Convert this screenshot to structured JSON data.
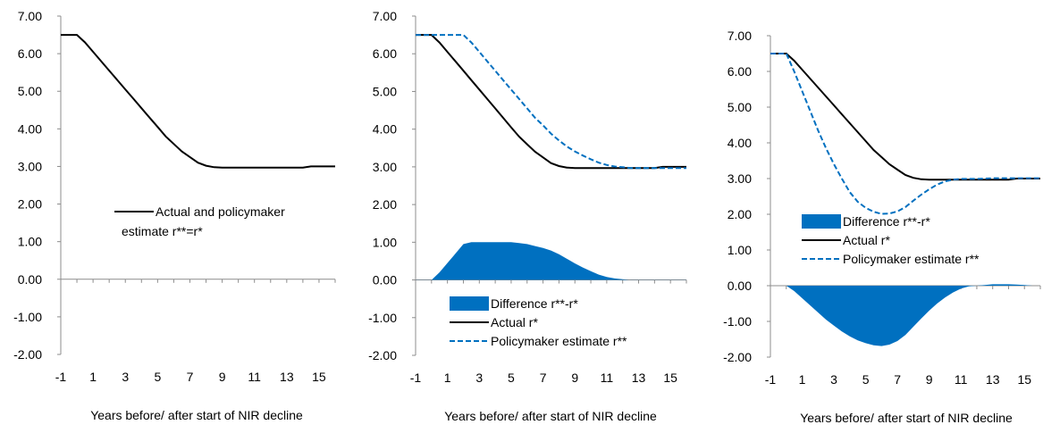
{
  "chart_data": [
    {
      "type": "line",
      "x": [
        -1,
        -0.5,
        0,
        0.5,
        1,
        1.5,
        2,
        2.5,
        3,
        3.5,
        4,
        4.5,
        5,
        5.5,
        6,
        6.5,
        7,
        7.5,
        8,
        8.5,
        9,
        9.5,
        10,
        10.5,
        11,
        11.5,
        12,
        12.5,
        13,
        13.5,
        14,
        14.5,
        15,
        15.5,
        16
      ],
      "xticks": [
        "-1",
        "1",
        "3",
        "5",
        "7",
        "9",
        "11",
        "13",
        "15"
      ],
      "yticks": [
        "7.00",
        "6.00",
        "5.00",
        "4.00",
        "3.00",
        "2.00",
        "1.00",
        "0.00",
        "-1.00",
        "-2.00"
      ],
      "ylim": [
        -2,
        7
      ],
      "xlabel": "Years before/ after start of NIR decline",
      "legend": [
        {
          "label": "Actual and policymaker",
          "label2": "estimate r**=r*",
          "style": "solid"
        }
      ],
      "series": [
        {
          "name": "Actual and policymaker estimate r**=r*",
          "style": "solid",
          "color": "#000000",
          "values": [
            6.5,
            6.5,
            6.5,
            6.3,
            6.05,
            5.8,
            5.55,
            5.3,
            5.05,
            4.8,
            4.55,
            4.3,
            4.05,
            3.8,
            3.6,
            3.4,
            3.25,
            3.1,
            3.02,
            2.98,
            2.97,
            2.97,
            2.97,
            2.97,
            2.97,
            2.97,
            2.97,
            2.97,
            2.97,
            2.97,
            2.97,
            3.0,
            3.0,
            3.0,
            3.0
          ]
        }
      ]
    },
    {
      "type": "line",
      "x": [
        -1,
        -0.5,
        0,
        0.5,
        1,
        1.5,
        2,
        2.5,
        3,
        3.5,
        4,
        4.5,
        5,
        5.5,
        6,
        6.5,
        7,
        7.5,
        8,
        8.5,
        9,
        9.5,
        10,
        10.5,
        11,
        11.5,
        12,
        12.5,
        13,
        13.5,
        14,
        14.5,
        15,
        15.5,
        16
      ],
      "xticks": [
        "-1",
        "1",
        "3",
        "5",
        "7",
        "9",
        "11",
        "13",
        "15"
      ],
      "yticks": [
        "7.00",
        "6.00",
        "5.00",
        "4.00",
        "3.00",
        "2.00",
        "1.00",
        "0.00",
        "-1.00",
        "-2.00"
      ],
      "ylim": [
        -2,
        7
      ],
      "xlabel": "Years before/ after start of NIR decline",
      "legend": [
        {
          "label": "Difference r**-r*",
          "style": "area"
        },
        {
          "label": "Actual r*",
          "style": "solid"
        },
        {
          "label": "Policymaker estimate r**",
          "style": "dashed"
        }
      ],
      "series": [
        {
          "name": "Difference r**-r*",
          "style": "area",
          "color": "#0070c0",
          "values": [
            0,
            0,
            0,
            0.2,
            0.45,
            0.7,
            0.95,
            1.0,
            1.0,
            1.0,
            1.0,
            1.0,
            1.0,
            0.98,
            0.95,
            0.9,
            0.85,
            0.78,
            0.68,
            0.56,
            0.44,
            0.33,
            0.23,
            0.14,
            0.08,
            0.04,
            0.02,
            0.0,
            0.0,
            0.0,
            0.0,
            0.0,
            0.0,
            0.0,
            0.0
          ]
        },
        {
          "name": "Actual r*",
          "style": "solid",
          "color": "#000000",
          "values": [
            6.5,
            6.5,
            6.5,
            6.3,
            6.05,
            5.8,
            5.55,
            5.3,
            5.05,
            4.8,
            4.55,
            4.3,
            4.05,
            3.8,
            3.6,
            3.4,
            3.25,
            3.1,
            3.02,
            2.98,
            2.97,
            2.97,
            2.97,
            2.97,
            2.97,
            2.97,
            2.97,
            2.97,
            2.97,
            2.97,
            2.97,
            3.0,
            3.0,
            3.0,
            3.0
          ]
        },
        {
          "name": "Policymaker estimate r**",
          "style": "dashed",
          "color": "#0070c0",
          "values": [
            6.5,
            6.5,
            6.5,
            6.5,
            6.5,
            6.5,
            6.5,
            6.3,
            6.05,
            5.8,
            5.55,
            5.3,
            5.05,
            4.8,
            4.55,
            4.3,
            4.1,
            3.88,
            3.7,
            3.54,
            3.41,
            3.3,
            3.2,
            3.11,
            3.05,
            3.01,
            2.99,
            2.97,
            2.97,
            2.97,
            2.97,
            2.97,
            2.97,
            2.97,
            2.97
          ]
        }
      ]
    },
    {
      "type": "line",
      "x": [
        -1,
        -0.5,
        0,
        0.5,
        1,
        1.5,
        2,
        2.5,
        3,
        3.5,
        4,
        4.5,
        5,
        5.5,
        6,
        6.5,
        7,
        7.5,
        8,
        8.5,
        9,
        9.5,
        10,
        10.5,
        11,
        11.5,
        12,
        12.5,
        13,
        13.5,
        14,
        14.5,
        15,
        15.5,
        16
      ],
      "xticks": [
        "-1",
        "1",
        "3",
        "5",
        "7",
        "9",
        "11",
        "13",
        "15"
      ],
      "yticks": [
        "7.00",
        "6.00",
        "5.00",
        "4.00",
        "3.00",
        "2.00",
        "1.00",
        "0.00",
        "-1.00",
        "-2.00"
      ],
      "ylim": [
        -2,
        7
      ],
      "xlabel": "Years before/ after start of NIR decline",
      "legend": [
        {
          "label": "Difference r**-r*",
          "style": "area"
        },
        {
          "label": "Actual r*",
          "style": "solid"
        },
        {
          "label": "Policymaker estimate r**",
          "style": "dashed"
        }
      ],
      "series": [
        {
          "name": "Difference r**-r*",
          "style": "area",
          "color": "#0070c0",
          "values": [
            0,
            0,
            0,
            -0.15,
            -0.35,
            -0.55,
            -0.75,
            -0.95,
            -1.12,
            -1.28,
            -1.42,
            -1.53,
            -1.61,
            -1.67,
            -1.69,
            -1.65,
            -1.55,
            -1.38,
            -1.15,
            -0.92,
            -0.7,
            -0.5,
            -0.33,
            -0.19,
            -0.08,
            -0.02,
            0.0,
            0.02,
            0.04,
            0.04,
            0.04,
            0.03,
            0.02,
            0.0,
            0.0
          ]
        },
        {
          "name": "Actual r*",
          "style": "solid",
          "color": "#000000",
          "values": [
            6.5,
            6.5,
            6.5,
            6.3,
            6.05,
            5.8,
            5.55,
            5.3,
            5.05,
            4.8,
            4.55,
            4.3,
            4.05,
            3.8,
            3.6,
            3.4,
            3.25,
            3.1,
            3.02,
            2.98,
            2.97,
            2.97,
            2.97,
            2.97,
            2.97,
            2.97,
            2.97,
            2.97,
            2.97,
            2.97,
            2.97,
            3.0,
            3.0,
            3.0,
            3.0
          ]
        },
        {
          "name": "Policymaker estimate r**",
          "style": "dashed",
          "color": "#0070c0",
          "values": [
            6.5,
            6.5,
            6.5,
            6.0,
            5.45,
            4.9,
            4.35,
            3.85,
            3.4,
            3.0,
            2.62,
            2.35,
            2.18,
            2.07,
            2.01,
            2.02,
            2.08,
            2.2,
            2.38,
            2.55,
            2.7,
            2.83,
            2.92,
            2.97,
            2.99,
            2.99,
            2.99,
            3.0,
            3.01,
            3.01,
            3.01,
            3.01,
            3.01,
            3.01,
            3.01
          ]
        }
      ]
    }
  ]
}
